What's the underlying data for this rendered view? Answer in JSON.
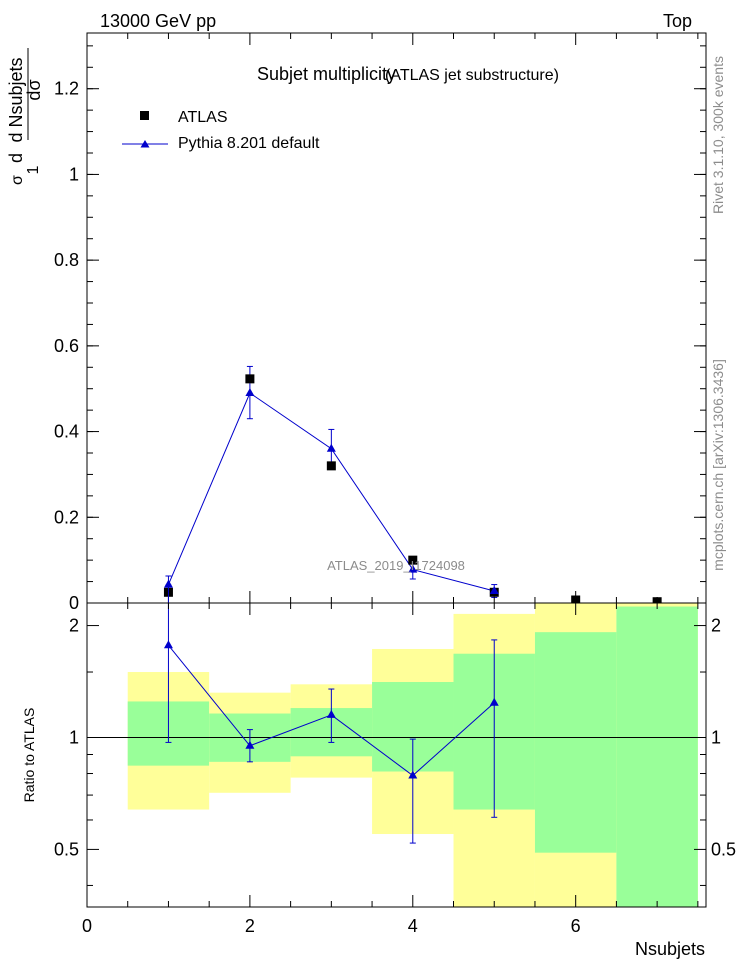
{
  "header": {
    "left": "13000 GeV pp",
    "right": "Top"
  },
  "side_labels": {
    "rivet": "Rivet 3.1.10,  300k events",
    "mcplots": "mcplots.cern.ch [arXiv:1306.3436]"
  },
  "chart_data": [
    {
      "type": "scatter",
      "title": "Subjet multiplicity",
      "subtitle": "(ATLAS jet substructure)",
      "ylabel_lines": [
        "d",
        "1",
        "σ",
        "d",
        "σ",
        "d Nsubjets"
      ],
      "watermark": "ATLAS_2019_I1724098",
      "xlim": [
        0,
        7.6
      ],
      "ylim": [
        0,
        1.33
      ],
      "yticks": [
        0,
        0.2,
        0.4,
        0.6,
        0.8,
        1,
        1.2
      ],
      "ytick_labels": [
        "0",
        "0.2",
        "0.4",
        "0.6",
        "0.8",
        "1",
        "1.2"
      ],
      "legend": {
        "placement": "top-left",
        "entries": [
          "ATLAS",
          "Pythia 8.201 default"
        ]
      },
      "series": [
        {
          "name": "ATLAS",
          "marker": "square",
          "color": "#000000",
          "x": [
            1,
            2,
            3,
            4,
            5,
            6,
            7
          ],
          "y": [
            0.025,
            0.523,
            0.32,
            0.1,
            0.025,
            0.007,
            0.003
          ]
        },
        {
          "name": "Pythia 8.201 default",
          "marker": "triangle",
          "color": "#0000cc",
          "x": [
            1,
            2,
            3,
            4,
            5
          ],
          "y": [
            0.043,
            0.49,
            0.36,
            0.078,
            0.028
          ],
          "yerr_low": [
            0.02,
            0.06,
            0.045,
            0.022,
            0.015
          ],
          "yerr_high": [
            0.02,
            0.062,
            0.045,
            0.022,
            0.015
          ]
        }
      ]
    },
    {
      "type": "line",
      "ylabel": "Ratio to ATLAS",
      "xlabel": "Nsubjets",
      "xlim": [
        0,
        7.6
      ],
      "ylim": [
        0.35,
        2.3
      ],
      "xticks": [
        0,
        2,
        4,
        6
      ],
      "xtick_labels": [
        "0",
        "2",
        "4",
        "6"
      ],
      "yticks": [
        0.5,
        1,
        2
      ],
      "ytick_labels": [
        "0.5",
        "1",
        "2"
      ],
      "bands": [
        {
          "x0": 0.5,
          "x1": 1.5,
          "yellow": [
            0.64,
            1.5
          ],
          "green": [
            0.84,
            1.25
          ]
        },
        {
          "x0": 1.5,
          "x1": 2.5,
          "yellow": [
            0.71,
            1.32
          ],
          "green": [
            0.86,
            1.16
          ]
        },
        {
          "x0": 2.5,
          "x1": 3.5,
          "yellow": [
            0.78,
            1.39
          ],
          "green": [
            0.89,
            1.2
          ]
        },
        {
          "x0": 3.5,
          "x1": 4.5,
          "yellow": [
            0.55,
            1.73
          ],
          "green": [
            0.81,
            1.41
          ]
        },
        {
          "x0": 4.5,
          "x1": 5.5,
          "yellow": [
            0.35,
            2.15
          ],
          "green": [
            0.64,
            1.68
          ]
        },
        {
          "x0": 5.5,
          "x1": 6.5,
          "yellow": [
            0.35,
            2.3
          ],
          "green": [
            0.49,
            1.92
          ]
        },
        {
          "x0": 6.5,
          "x1": 7.5,
          "yellow": [
            0.35,
            2.3
          ],
          "green": [
            0.35,
            2.25
          ]
        }
      ],
      "series": [
        {
          "name": "Pythia 8.201 default",
          "color": "#0000cc",
          "x": [
            1,
            2,
            3,
            4,
            5
          ],
          "y": [
            1.77,
            0.95,
            1.15,
            0.79,
            1.24
          ],
          "yerr_low": [
            0.8,
            0.09,
            0.18,
            0.27,
            0.63
          ],
          "yerr_high": [
            0.8,
            0.1,
            0.2,
            0.2,
            0.59
          ]
        }
      ]
    }
  ]
}
